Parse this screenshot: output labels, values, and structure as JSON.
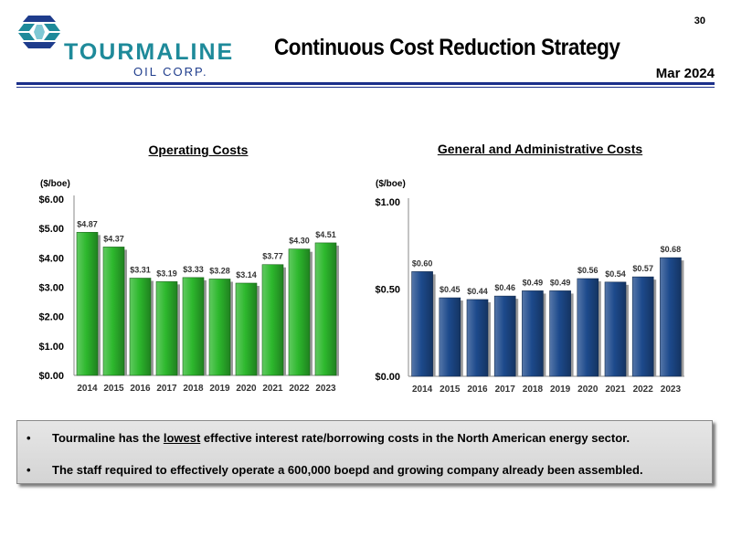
{
  "header": {
    "logo": {
      "word": "TOURMALINE",
      "sub": "OIL CORP."
    },
    "page_number": "30",
    "title": "Continuous Cost Reduction Strategy",
    "date": "Mar 2024"
  },
  "colors": {
    "accent": "#1b2f8a",
    "green_bar": "#2db82d",
    "blue_bar": "#1d4a8c"
  },
  "chart_data": [
    {
      "type": "bar",
      "title": "Operating Costs",
      "ylabel": "($/boe)",
      "categories": [
        "2014",
        "2015",
        "2016",
        "2017",
        "2018",
        "2019",
        "2020",
        "2021",
        "2022",
        "2023"
      ],
      "values": [
        4.87,
        4.37,
        3.31,
        3.19,
        3.33,
        3.28,
        3.14,
        3.77,
        4.3,
        4.51
      ],
      "data_labels": [
        "$4.87",
        "$4.37",
        "$3.31",
        "$3.19",
        "$3.33",
        "$3.28",
        "$3.14",
        "$3.77",
        "$4.30",
        "$4.51"
      ],
      "ylim": [
        0,
        6
      ],
      "yticks": [
        0,
        1,
        2,
        3,
        4,
        5,
        6
      ],
      "ytick_labels": [
        "$0.00",
        "$1.00",
        "$2.00",
        "$3.00",
        "$4.00",
        "$5.00",
        "$6.00"
      ],
      "grid": false,
      "color": "#2db82d"
    },
    {
      "type": "bar",
      "title": "General and Administrative Costs",
      "ylabel": "($/boe)",
      "categories": [
        "2014",
        "2015",
        "2016",
        "2017",
        "2018",
        "2019",
        "2020",
        "2021",
        "2022",
        "2023"
      ],
      "values": [
        0.6,
        0.45,
        0.44,
        0.46,
        0.49,
        0.49,
        0.56,
        0.54,
        0.57,
        0.68
      ],
      "data_labels": [
        "$0.60",
        "$0.45",
        "$0.44",
        "$0.46",
        "$0.49",
        "$0.49",
        "$0.56",
        "$0.54",
        "$0.57",
        "$0.68"
      ],
      "ylim": [
        0,
        1
      ],
      "yticks": [
        0,
        0.5,
        1
      ],
      "ytick_labels": [
        "$0.00",
        "$0.50",
        "$1.00"
      ],
      "grid": false,
      "color": "#1d4a8c"
    }
  ],
  "bullets": [
    {
      "marker": "•",
      "before": "Tourmaline has the ",
      "emphasis": "lowest",
      "after": " effective interest rate/borrowing costs in the North American energy sector."
    },
    {
      "marker": "•",
      "text": "The staff required to effectively operate a 600,000 boepd and growing company already been assembled."
    }
  ]
}
